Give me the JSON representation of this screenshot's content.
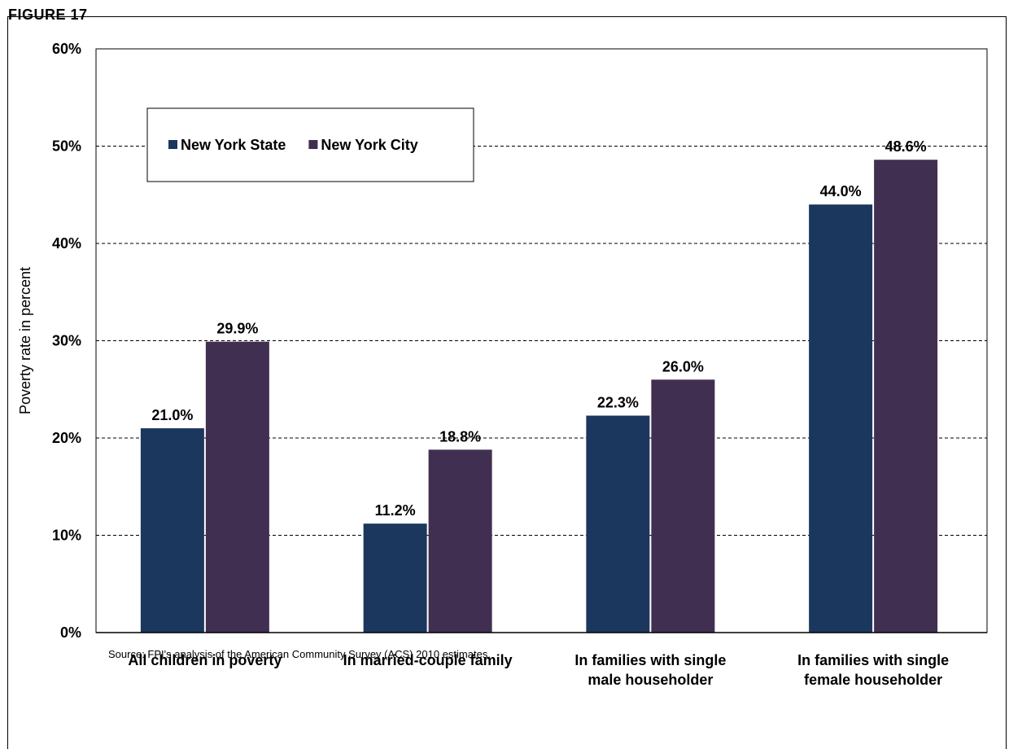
{
  "figure_label": "FIGURE 17",
  "source_note": "Source: FPI's analysis of the American Community Survey (ACS) 2010 estimates.",
  "colors": {
    "new_york_state": "#1b375d",
    "new_york_city": "#412f51",
    "grid": "#000000"
  },
  "chart_data": {
    "type": "bar",
    "title": "",
    "ylabel": "Poverty rate in percent",
    "xlabel": "",
    "ylim": [
      0,
      60
    ],
    "yticks": [
      "0%",
      "10%",
      "20%",
      "30%",
      "40%",
      "50%",
      "60%"
    ],
    "grid": true,
    "legend_placement": "top-left",
    "categories": [
      [
        "All children in poverty"
      ],
      [
        "In married-couple family"
      ],
      [
        "In families with single",
        "male householder"
      ],
      [
        "In families with single",
        "female householder"
      ]
    ],
    "series": [
      {
        "name": "New York State",
        "values": [
          21.0,
          11.2,
          22.3,
          44.0
        ],
        "labels": [
          "21.0%",
          "11.2%",
          "22.3%",
          "44.0%"
        ]
      },
      {
        "name": "New York City",
        "values": [
          29.9,
          18.8,
          26.0,
          48.6
        ],
        "labels": [
          "29.9%",
          "18.8%",
          "26.0%",
          "48.6%"
        ]
      }
    ]
  }
}
